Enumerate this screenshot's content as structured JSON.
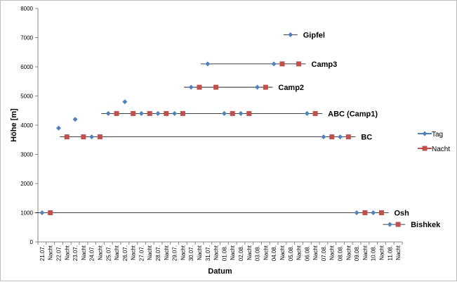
{
  "chart_data": {
    "type": "line",
    "xlabel": "Datum",
    "ylabel": "Höhe [m]",
    "ylim": [
      0,
      8000
    ],
    "y_ticks": [
      0,
      1000,
      2000,
      3000,
      4000,
      5000,
      6000,
      7000,
      8000
    ],
    "grid": false,
    "legend_position": "right",
    "categories": [
      "21.07.",
      "Nacht",
      "22.07.",
      "Nacht",
      "23.07.",
      "Nacht",
      "24.07.",
      "Nacht",
      "25.07.",
      "Nacht",
      "26.07.",
      "Nacht",
      "27.07.",
      "Nacht",
      "28.07.",
      "Nacht",
      "29.07.",
      "Nacht",
      "30.07.",
      "Nacht",
      "31.07.",
      "Nacht",
      "01.08.",
      "Nacht",
      "02.08.",
      "Nacht",
      "03.08.",
      "Nacht",
      "04.08.",
      "Nacht",
      "05.08.",
      "Nacht",
      "06.08.",
      "Nacht",
      "07.08.",
      "Nacht",
      "08.08.",
      "Nacht",
      "09.08.",
      "Nacht",
      "10.08.",
      "Nacht",
      "11.08.",
      "Nacht"
    ],
    "series": [
      {
        "name": "Tag",
        "color": "#4F81BD",
        "marker": "diamond",
        "values": [
          1000,
          null,
          3900,
          null,
          4200,
          null,
          3600,
          null,
          4400,
          null,
          4800,
          null,
          4400,
          null,
          4400,
          null,
          4400,
          null,
          5300,
          null,
          6100,
          null,
          4400,
          null,
          4400,
          null,
          5300,
          null,
          6100,
          null,
          7100,
          null,
          4400,
          null,
          3600,
          null,
          3600,
          null,
          1000,
          null,
          1000,
          null,
          600,
          null
        ]
      },
      {
        "name": "Nacht",
        "color": "#C0504D",
        "marker": "square",
        "values": [
          null,
          1000,
          null,
          3600,
          null,
          3600,
          null,
          3600,
          null,
          4400,
          null,
          4400,
          null,
          4400,
          null,
          4400,
          null,
          4400,
          null,
          5300,
          null,
          5300,
          null,
          4400,
          null,
          4400,
          null,
          5300,
          null,
          6100,
          null,
          6100,
          null,
          4400,
          null,
          3600,
          null,
          3600,
          null,
          1000,
          null,
          1000,
          null,
          600
        ]
      }
    ],
    "reference_lines": [
      {
        "label": "Osh",
        "y": 1000,
        "x_start": 0,
        "x_end": 41,
        "label_after": 41
      },
      {
        "label": "Bishkek",
        "y": 600,
        "x_start": 42,
        "x_end": 43,
        "label_after": 43
      },
      {
        "label": "BC",
        "y": 3600,
        "x_start": 3,
        "x_end": 37,
        "label_after": 37
      },
      {
        "label": "ABC (Camp1)",
        "y": 4400,
        "x_start": 8,
        "x_end": 33,
        "label_after": 33
      },
      {
        "label": "Camp2",
        "y": 5300,
        "x_start": 18,
        "x_end": 27,
        "label_after": 27
      },
      {
        "label": "Camp3",
        "y": 6100,
        "x_start": 20,
        "x_end": 31,
        "label_after": 31
      },
      {
        "label": "Gipfel",
        "y": 7100,
        "x_start": 30,
        "x_end": 30,
        "label_after": 30
      }
    ]
  }
}
